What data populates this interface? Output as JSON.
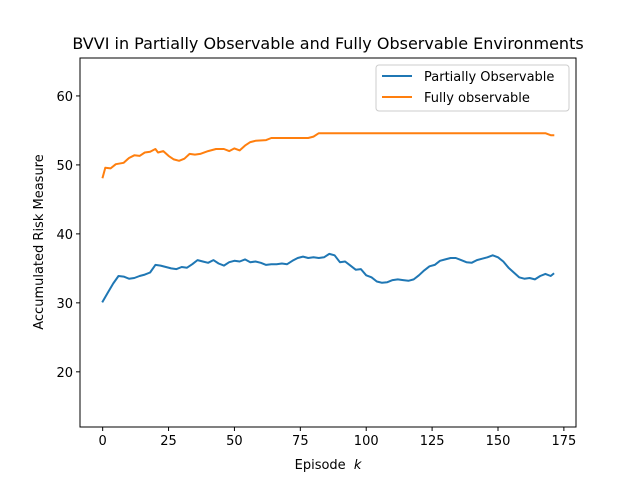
{
  "chart_data": {
    "type": "line",
    "title": "BVVI in Partially Observable and Fully Observable Environments",
    "xlabel": "Episode",
    "xlabel_var": "k",
    "ylabel": "Accumulated Risk Measure",
    "xlim": [
      -8.6,
      179.6
    ],
    "ylim": [
      12.0,
      65.5
    ],
    "xticks": [
      0,
      25,
      50,
      75,
      100,
      125,
      150,
      175
    ],
    "yticks": [
      20,
      30,
      40,
      50,
      60
    ],
    "legend_position": "upper right",
    "series": [
      {
        "name": "Partially Observable",
        "color": "#1f77b4",
        "points": [
          [
            0,
            30.2
          ],
          [
            2,
            31.5
          ],
          [
            4,
            32.8
          ],
          [
            6,
            33.9
          ],
          [
            8,
            33.8
          ],
          [
            10,
            33.5
          ],
          [
            12,
            33.6
          ],
          [
            14,
            33.9
          ],
          [
            16,
            34.1
          ],
          [
            18,
            34.4
          ],
          [
            20,
            35.5
          ],
          [
            22,
            35.4
          ],
          [
            24,
            35.2
          ],
          [
            26,
            35.0
          ],
          [
            28,
            34.9
          ],
          [
            30,
            35.2
          ],
          [
            32,
            35.1
          ],
          [
            34,
            35.6
          ],
          [
            36,
            36.2
          ],
          [
            38,
            36.0
          ],
          [
            40,
            35.8
          ],
          [
            42,
            36.2
          ],
          [
            44,
            35.7
          ],
          [
            46,
            35.4
          ],
          [
            48,
            35.9
          ],
          [
            50,
            36.1
          ],
          [
            52,
            36.0
          ],
          [
            54,
            36.3
          ],
          [
            56,
            35.9
          ],
          [
            58,
            36.0
          ],
          [
            60,
            35.8
          ],
          [
            62,
            35.5
          ],
          [
            64,
            35.6
          ],
          [
            66,
            35.6
          ],
          [
            68,
            35.7
          ],
          [
            70,
            35.6
          ],
          [
            72,
            36.1
          ],
          [
            74,
            36.5
          ],
          [
            76,
            36.7
          ],
          [
            78,
            36.5
          ],
          [
            80,
            36.6
          ],
          [
            82,
            36.5
          ],
          [
            84,
            36.6
          ],
          [
            86,
            37.1
          ],
          [
            88,
            36.9
          ],
          [
            90,
            35.9
          ],
          [
            92,
            36.0
          ],
          [
            94,
            35.4
          ],
          [
            96,
            34.8
          ],
          [
            98,
            34.9
          ],
          [
            100,
            34.0
          ],
          [
            102,
            33.7
          ],
          [
            104,
            33.1
          ],
          [
            106,
            32.9
          ],
          [
            108,
            33.0
          ],
          [
            110,
            33.3
          ],
          [
            112,
            33.4
          ],
          [
            114,
            33.3
          ],
          [
            116,
            33.2
          ],
          [
            118,
            33.4
          ],
          [
            120,
            34.0
          ],
          [
            122,
            34.7
          ],
          [
            124,
            35.3
          ],
          [
            126,
            35.5
          ],
          [
            128,
            36.1
          ],
          [
            130,
            36.3
          ],
          [
            132,
            36.5
          ],
          [
            134,
            36.5
          ],
          [
            136,
            36.2
          ],
          [
            138,
            35.9
          ],
          [
            140,
            35.8
          ],
          [
            142,
            36.2
          ],
          [
            144,
            36.4
          ],
          [
            146,
            36.6
          ],
          [
            148,
            36.9
          ],
          [
            150,
            36.6
          ],
          [
            152,
            36.0
          ],
          [
            154,
            35.1
          ],
          [
            156,
            34.4
          ],
          [
            158,
            33.7
          ],
          [
            160,
            33.5
          ],
          [
            162,
            33.6
          ],
          [
            164,
            33.4
          ],
          [
            166,
            33.9
          ],
          [
            168,
            34.2
          ],
          [
            170,
            33.9
          ],
          [
            171,
            34.2
          ]
        ]
      },
      {
        "name": "Fully observable",
        "color": "#ff7f0e",
        "points": [
          [
            0,
            48.2
          ],
          [
            1,
            49.6
          ],
          [
            3,
            49.5
          ],
          [
            5,
            50.1
          ],
          [
            8,
            50.3
          ],
          [
            10,
            51.0
          ],
          [
            12,
            51.4
          ],
          [
            14,
            51.3
          ],
          [
            16,
            51.8
          ],
          [
            18,
            51.9
          ],
          [
            20,
            52.3
          ],
          [
            21,
            51.8
          ],
          [
            23,
            52.0
          ],
          [
            25,
            51.3
          ],
          [
            27,
            50.8
          ],
          [
            29,
            50.6
          ],
          [
            31,
            50.9
          ],
          [
            33,
            51.6
          ],
          [
            35,
            51.5
          ],
          [
            37,
            51.6
          ],
          [
            40,
            52.0
          ],
          [
            43,
            52.3
          ],
          [
            46,
            52.3
          ],
          [
            48,
            52.0
          ],
          [
            50,
            52.4
          ],
          [
            52,
            52.1
          ],
          [
            54,
            52.8
          ],
          [
            56,
            53.3
          ],
          [
            58,
            53.5
          ],
          [
            62,
            53.6
          ],
          [
            64,
            53.9
          ],
          [
            78,
            53.9
          ],
          [
            80,
            54.1
          ],
          [
            82,
            54.6
          ],
          [
            168,
            54.6
          ],
          [
            170,
            54.3
          ],
          [
            171,
            54.3
          ]
        ]
      }
    ]
  }
}
